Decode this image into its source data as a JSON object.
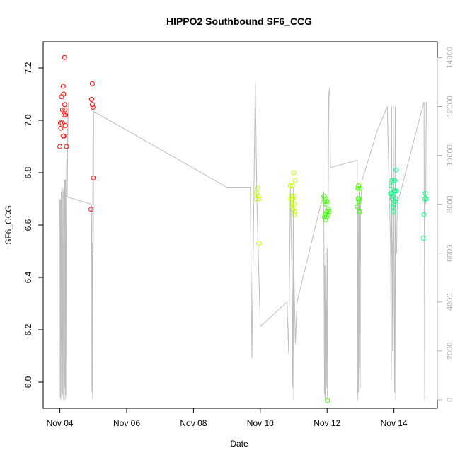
{
  "chart_data": {
    "type": "scatter",
    "title": "HIPPO2 Southbound SF6_CCG",
    "xlabel": "Date",
    "ylabel": "SF6_CCG",
    "xlim": [
      -0.5,
      11.3
    ],
    "ylim": [
      5.9,
      7.3
    ],
    "x_ticks": [
      0,
      2,
      4,
      6,
      8,
      10
    ],
    "x_tick_labels": [
      "Nov 04",
      "Nov 06",
      "Nov 08",
      "Nov 10",
      "Nov 12",
      "Nov 14"
    ],
    "y_ticks": [
      6.0,
      6.2,
      6.4,
      6.6,
      6.8,
      7.0,
      7.2
    ],
    "y_tick_labels": [
      "6.0",
      "6.2",
      "6.4",
      "6.6",
      "6.8",
      "7.0",
      "7.2"
    ],
    "y2lim": [
      -350,
      14650
    ],
    "y2_ticks": [
      0,
      2000,
      4000,
      6000,
      8000,
      10000,
      12000,
      14000
    ],
    "y2_tick_labels": [
      "0",
      "2000",
      "4000",
      "6000",
      "8000",
      "10000",
      "12000",
      "14000"
    ],
    "scatter_series": [
      {
        "color": "#FF0000",
        "points": [
          [
            0.0,
            6.9
          ],
          [
            0.02,
            6.99
          ],
          [
            0.03,
            6.97
          ],
          [
            0.05,
            7.09
          ],
          [
            0.07,
            6.99
          ],
          [
            0.08,
            7.04
          ],
          [
            0.1,
            7.13
          ],
          [
            0.1,
            6.94
          ],
          [
            0.11,
            7.1
          ],
          [
            0.12,
            7.02
          ],
          [
            0.12,
            6.94
          ],
          [
            0.14,
            7.06
          ],
          [
            0.15,
            7.04
          ],
          [
            0.16,
            6.98
          ],
          [
            0.17,
            7.02
          ],
          [
            0.14,
            7.24
          ],
          [
            0.2,
            6.9
          ],
          [
            0.93,
            6.66
          ],
          [
            0.95,
            7.08
          ],
          [
            0.97,
            7.14
          ],
          [
            0.97,
            7.06
          ],
          [
            0.99,
            7.05
          ],
          [
            1.0,
            6.78
          ]
        ]
      },
      {
        "color": "#BFFF00",
        "points": [
          [
            5.88,
            6.7
          ],
          [
            5.9,
            6.72
          ],
          [
            5.92,
            6.74
          ],
          [
            5.94,
            6.71
          ],
          [
            5.96,
            6.53
          ],
          [
            5.97,
            6.7
          ],
          [
            6.9,
            6.75
          ],
          [
            6.92,
            6.7
          ],
          [
            6.93,
            6.71
          ],
          [
            6.94,
            6.68
          ],
          [
            6.95,
            6.67
          ],
          [
            6.96,
            6.75
          ],
          [
            6.97,
            6.7
          ],
          [
            6.98,
            6.66
          ],
          [
            6.99,
            6.71
          ],
          [
            7.0,
            6.8
          ],
          [
            7.01,
            6.68
          ],
          [
            7.02,
            6.64
          ],
          [
            7.03,
            6.65
          ],
          [
            7.04,
            6.77
          ]
        ]
      },
      {
        "color": "#3FFF00",
        "points": [
          [
            7.9,
            6.71
          ],
          [
            7.92,
            6.63
          ],
          [
            7.93,
            6.69
          ],
          [
            7.94,
            6.64
          ],
          [
            7.95,
            6.7
          ],
          [
            7.96,
            6.62
          ],
          [
            7.97,
            6.68
          ],
          [
            7.98,
            6.63
          ],
          [
            7.99,
            6.65
          ],
          [
            8.0,
            6.69
          ],
          [
            8.01,
            5.93
          ],
          [
            8.02,
            6.64
          ],
          [
            8.04,
            6.66
          ],
          [
            8.06,
            6.65
          ],
          [
            8.9,
            6.67
          ],
          [
            8.92,
            6.74
          ],
          [
            8.93,
            6.7
          ],
          [
            8.94,
            6.75
          ],
          [
            8.95,
            6.69
          ],
          [
            8.96,
            6.7
          ],
          [
            8.97,
            6.65
          ],
          [
            8.98,
            6.65
          ],
          [
            8.99,
            6.74
          ]
        ]
      },
      {
        "color": "#00FF80",
        "points": [
          [
            9.9,
            6.72
          ],
          [
            9.92,
            6.75
          ],
          [
            9.93,
            6.72
          ],
          [
            9.94,
            6.77
          ],
          [
            9.95,
            6.7
          ],
          [
            9.96,
            6.71
          ],
          [
            9.97,
            6.67
          ],
          [
            9.98,
            6.65
          ],
          [
            10.0,
            6.68
          ],
          [
            10.01,
            6.73
          ],
          [
            10.02,
            6.77
          ],
          [
            10.03,
            6.73
          ],
          [
            10.04,
            6.69
          ],
          [
            10.05,
            6.7
          ],
          [
            10.06,
            6.81
          ],
          [
            10.07,
            6.73
          ],
          [
            10.88,
            6.55
          ],
          [
            10.9,
            6.64
          ],
          [
            10.92,
            6.7
          ],
          [
            10.94,
            6.72
          ],
          [
            10.96,
            6.7
          ]
        ]
      }
    ],
    "line_series": {
      "color": "#BEBEBE",
      "axis": "right",
      "points": [
        [
          0.0,
          8200
        ],
        [
          0.01,
          100
        ],
        [
          0.02,
          8200
        ],
        [
          0.03,
          0
        ],
        [
          0.04,
          8500
        ],
        [
          0.06,
          300
        ],
        [
          0.07,
          8700
        ],
        [
          0.08,
          200
        ],
        [
          0.1,
          8600
        ],
        [
          0.11,
          0
        ],
        [
          0.13,
          9000
        ],
        [
          0.14,
          500
        ],
        [
          0.15,
          9000
        ],
        [
          0.16,
          0
        ],
        [
          0.17,
          9000
        ],
        [
          0.18,
          200
        ],
        [
          0.2,
          9500
        ],
        [
          0.22,
          10500
        ],
        [
          0.25,
          12200
        ],
        [
          0.22,
          8300
        ],
        [
          0.95,
          8000
        ],
        [
          0.96,
          300
        ],
        [
          0.97,
          6400
        ],
        [
          0.98,
          0
        ],
        [
          0.99,
          10800
        ],
        [
          1.0,
          6000
        ],
        [
          1.01,
          11800
        ],
        [
          5.0,
          8700
        ],
        [
          5.7,
          8700
        ],
        [
          5.75,
          1700
        ],
        [
          5.85,
          13000
        ],
        [
          5.9,
          8000
        ],
        [
          6.0,
          3000
        ],
        [
          6.8,
          4000
        ],
        [
          6.85,
          1900
        ],
        [
          6.9,
          8700
        ],
        [
          6.95,
          5000
        ],
        [
          6.97,
          500
        ],
        [
          6.99,
          8700
        ],
        [
          7.0,
          0
        ],
        [
          7.01,
          5000
        ],
        [
          7.05,
          2300
        ],
        [
          7.1,
          4000
        ],
        [
          7.9,
          8500
        ],
        [
          7.92,
          200
        ],
        [
          7.93,
          5500
        ],
        [
          7.94,
          0
        ],
        [
          7.96,
          6000
        ],
        [
          7.98,
          500
        ],
        [
          8.0,
          6200
        ],
        [
          8.01,
          0
        ],
        [
          8.02,
          5000
        ],
        [
          8.05,
          12500
        ],
        [
          8.08,
          12800
        ],
        [
          8.1,
          9500
        ],
        [
          8.9,
          9800
        ],
        [
          8.92,
          0
        ],
        [
          8.93,
          8200
        ],
        [
          8.94,
          300
        ],
        [
          8.96,
          8500
        ],
        [
          8.97,
          1500
        ],
        [
          8.99,
          500
        ],
        [
          9.0,
          7800
        ],
        [
          9.05,
          9000
        ],
        [
          9.5,
          11000
        ],
        [
          9.8,
          12000
        ],
        [
          9.9,
          6300
        ],
        [
          9.92,
          800
        ],
        [
          9.93,
          12000
        ],
        [
          9.94,
          5800
        ],
        [
          9.95,
          6500
        ],
        [
          9.96,
          2000
        ],
        [
          9.98,
          12000
        ],
        [
          10.0,
          6000
        ],
        [
          10.02,
          300
        ],
        [
          10.04,
          12000
        ],
        [
          10.05,
          0
        ],
        [
          10.06,
          6000
        ],
        [
          10.08,
          6000
        ],
        [
          10.1,
          8000
        ],
        [
          10.9,
          12200
        ],
        [
          10.91,
          7000
        ],
        [
          10.92,
          0
        ],
        [
          10.93,
          8500
        ],
        [
          10.95,
          8000
        ],
        [
          10.97,
          12200
        ]
      ]
    }
  }
}
